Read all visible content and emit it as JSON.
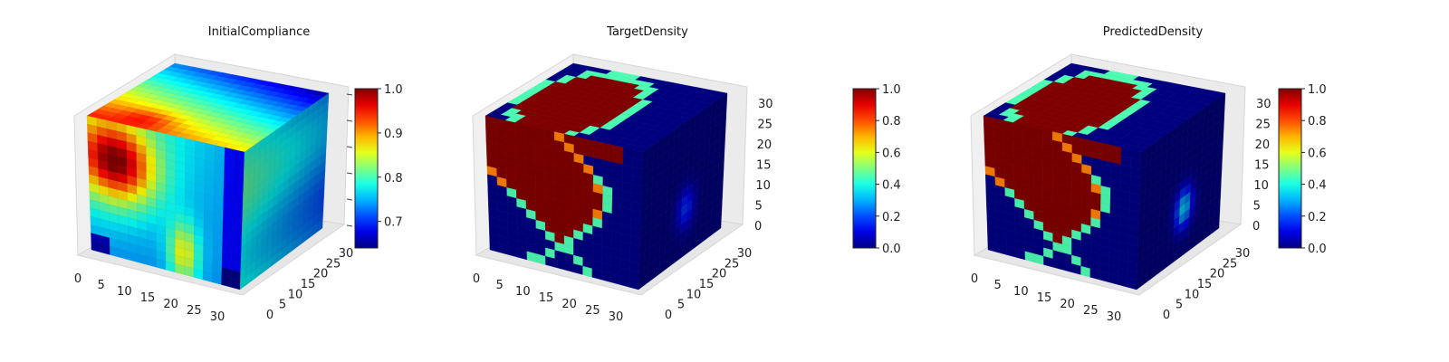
{
  "chart_data": [
    {
      "type": "heatmap",
      "subtype": "3d-voxel-cube",
      "title": "InitialCompliance",
      "xlabel": "",
      "ylabel": "",
      "zlabel": "",
      "x_ticks": [
        "0",
        "5",
        "10",
        "15",
        "20",
        "25",
        "30"
      ],
      "y_ticks": [
        "0",
        "5",
        "10",
        "15",
        "20",
        "25",
        "30"
      ],
      "z_ticks": [],
      "grid_size": 32,
      "colormap": "jet",
      "colorbar": {
        "ticks": [
          "1.0",
          "0.9",
          "0.8",
          "0.7"
        ],
        "range": [
          0.64,
          1.0
        ]
      },
      "face_fields": {
        "front": "smooth compliance field, higher (~0.95) toward upper-left, ~0.75 bottom corners",
        "top": "~0.95 at front-left fading to ~0.7 at the back-right",
        "right": "~0.78 nearly uniform, ~0.7 near the back edge"
      }
    },
    {
      "type": "heatmap",
      "subtype": "3d-voxel-cube",
      "title": "TargetDensity",
      "xlabel": "",
      "ylabel": "",
      "zlabel": "",
      "x_ticks": [
        "0",
        "5",
        "10",
        "15",
        "20",
        "25",
        "30"
      ],
      "y_ticks": [
        "0",
        "5",
        "10",
        "15",
        "20",
        "25",
        "30"
      ],
      "z_ticks": [
        "0",
        "5",
        "10",
        "15",
        "20",
        "25",
        "30"
      ],
      "grid_size": 32,
      "colormap": "jet",
      "colorbar": {
        "ticks": [
          "1.0",
          "0.8",
          "0.6",
          "0.4",
          "0.2",
          "0.0"
        ],
        "range": [
          0.0,
          1.0
        ]
      },
      "face_fields": {
        "front": "solid material (1.0) in an S-shaped region bounded by a curved edge, void (0.0) elsewhere",
        "top": "curved band of material near the front-left",
        "right": "void (0.0) with faint trace"
      }
    },
    {
      "type": "heatmap",
      "subtype": "3d-voxel-cube",
      "title": "PredictedDensity",
      "xlabel": "",
      "ylabel": "",
      "zlabel": "",
      "x_ticks": [
        "0",
        "5",
        "10",
        "15",
        "20",
        "25",
        "30"
      ],
      "y_ticks": [
        "0",
        "5",
        "10",
        "15",
        "20",
        "25",
        "30"
      ],
      "z_ticks": [
        "0",
        "5",
        "10",
        "15",
        "20",
        "25",
        "30"
      ],
      "grid_size": 32,
      "colormap": "jet",
      "colorbar": {
        "ticks": [
          "1.0",
          "0.8",
          "0.6",
          "0.4",
          "0.2",
          "0.0"
        ],
        "range": [
          0.0,
          1.0
        ]
      },
      "face_fields": {
        "front": "near-identical to target: S-shaped solid region, void elsewhere",
        "top": "curved band of material near the front-left",
        "right": "void (0.0) with a slightly stronger faint trace"
      }
    }
  ]
}
